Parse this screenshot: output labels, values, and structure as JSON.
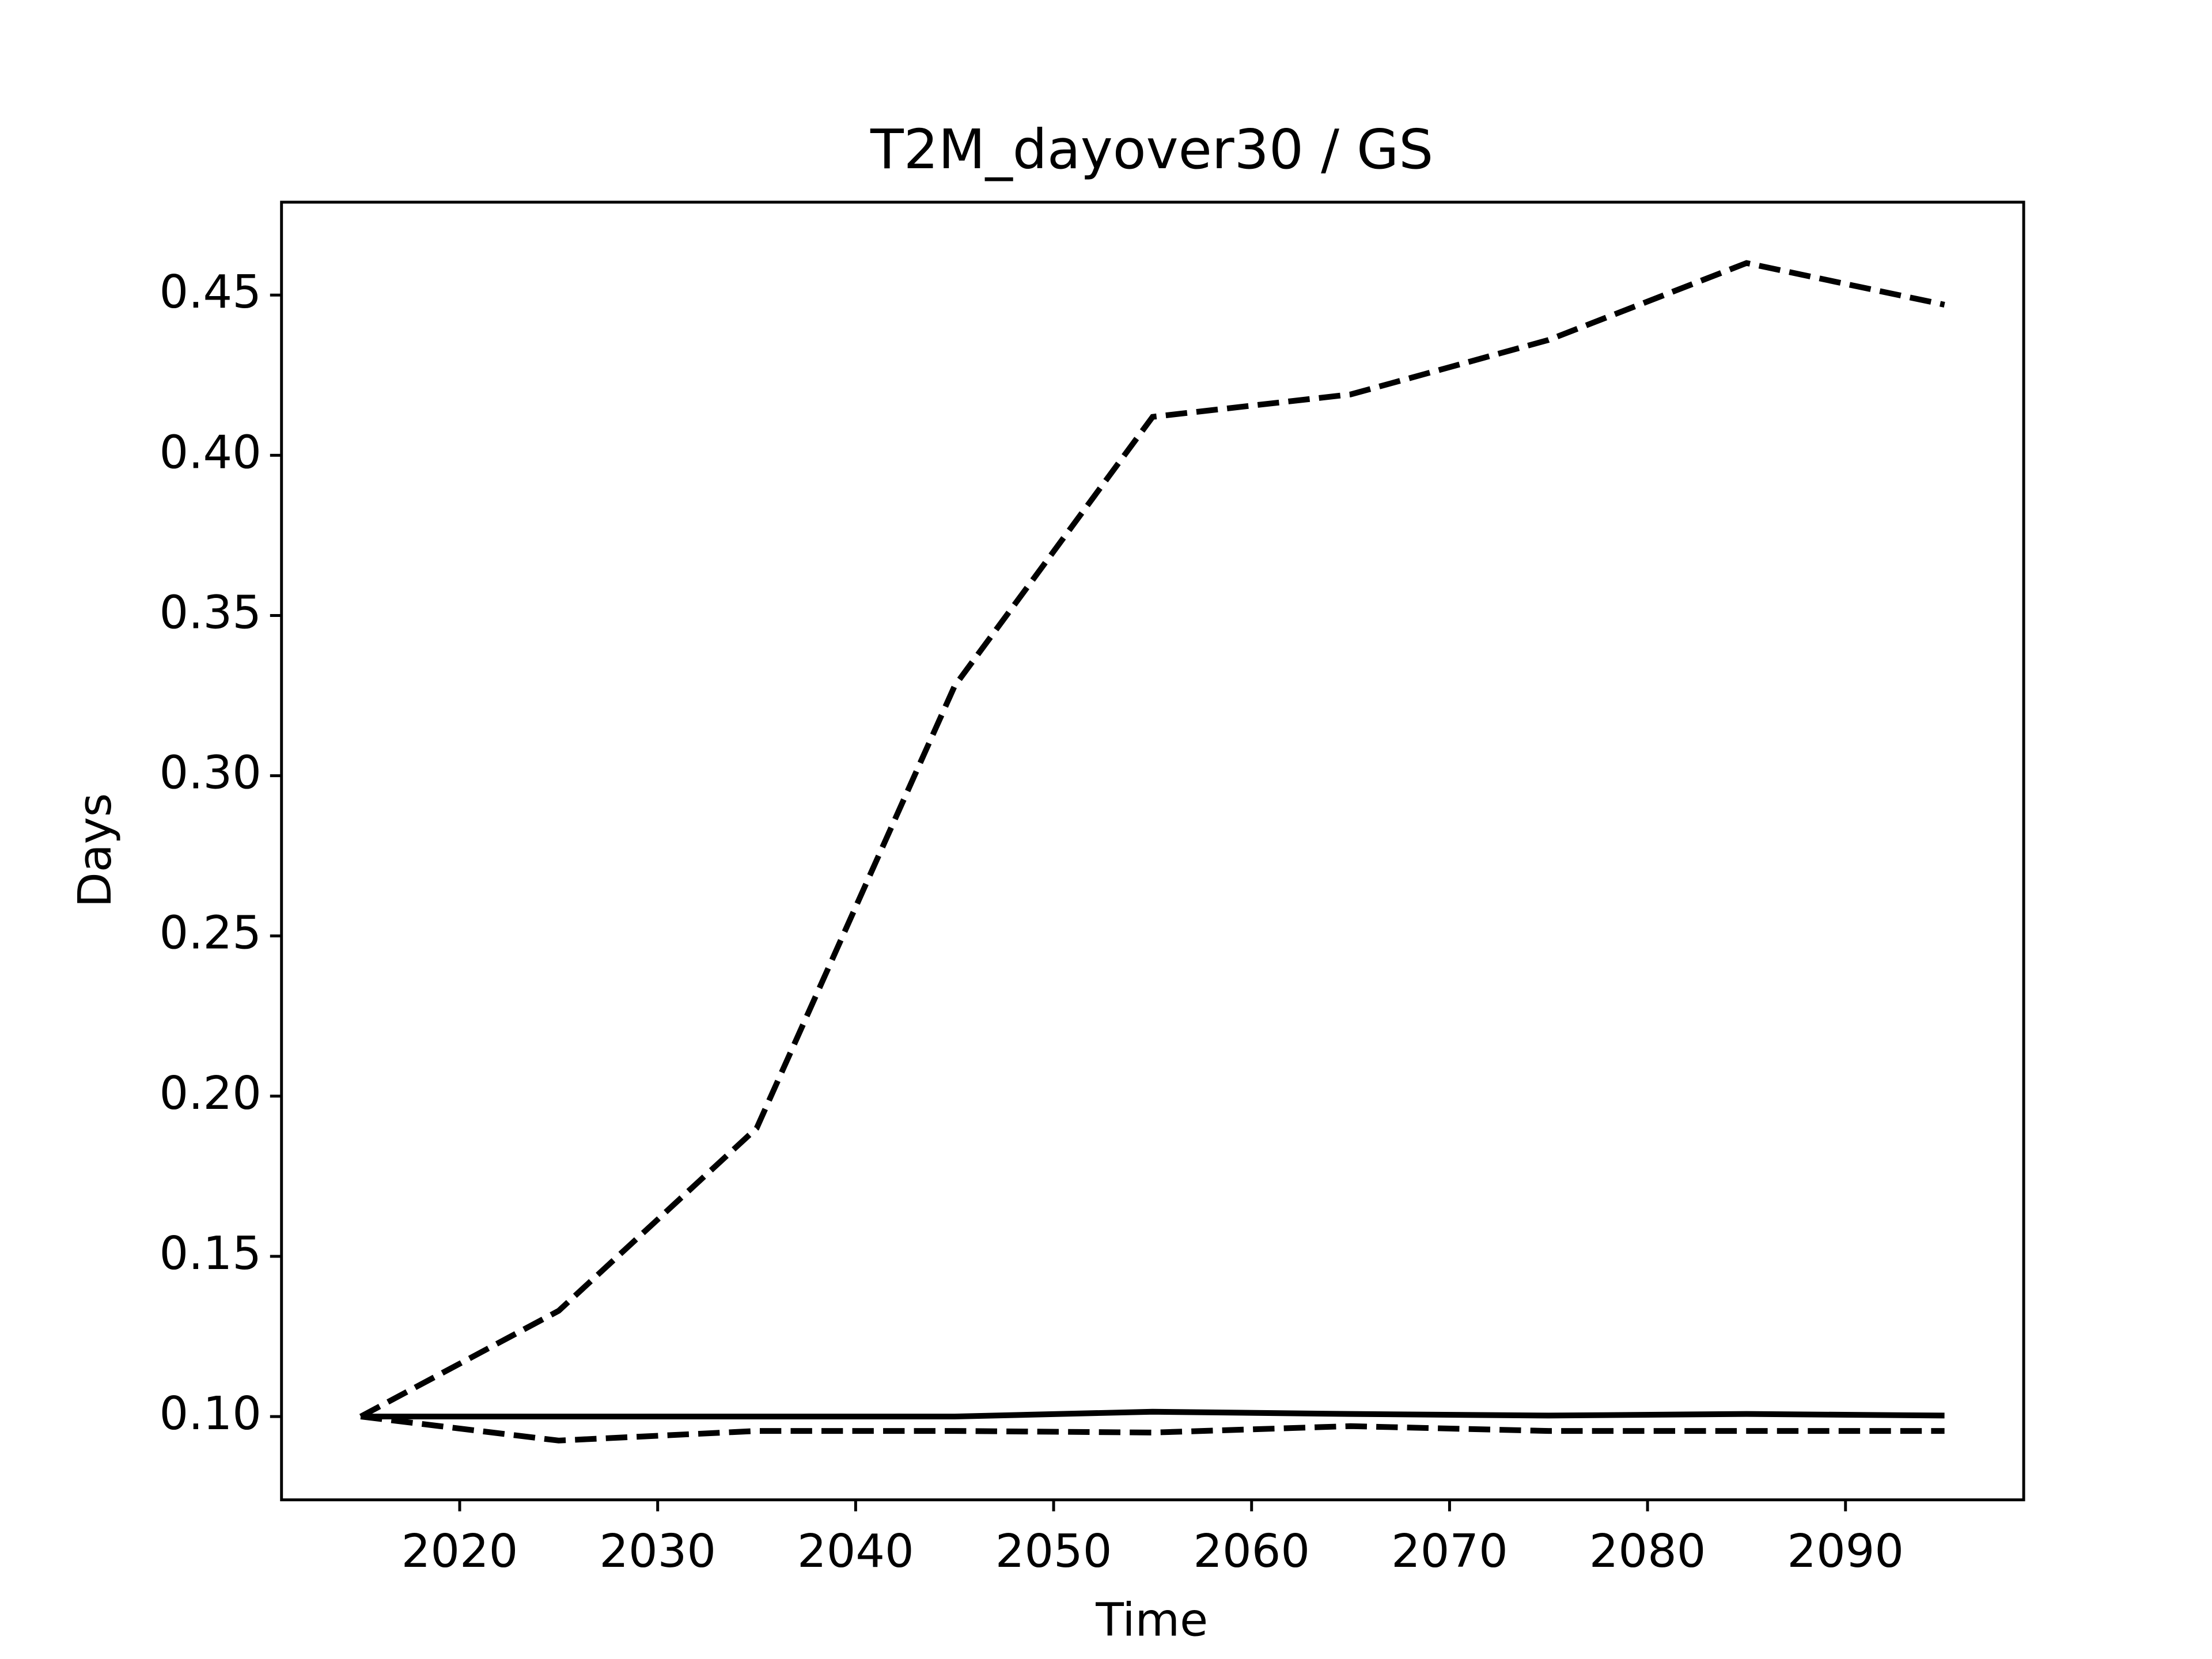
{
  "chart_data": {
    "type": "line",
    "title": "T2M_dayover30 / GS",
    "xlabel": "Time",
    "ylabel": "Days",
    "x": [
      2015,
      2025,
      2035,
      2045,
      2055,
      2065,
      2075,
      2085,
      2095
    ],
    "series": [
      {
        "color": "#000000",
        "linestyle": "dashed",
        "values": [
          0.1,
          0.133,
          0.19,
          0.328,
          0.412,
          0.419,
          0.436,
          0.46,
          0.447
        ]
      },
      {
        "color": "#000000",
        "linestyle": "solid",
        "values": [
          0.1,
          0.1,
          0.1,
          0.1,
          0.1015,
          0.1008,
          0.1003,
          0.1008,
          0.1003
        ]
      },
      {
        "color": "#000000",
        "linestyle": "dashed",
        "values": [
          0.1,
          0.0925,
          0.0955,
          0.0955,
          0.095,
          0.097,
          0.0955,
          0.0955,
          0.0955
        ]
      }
    ],
    "xlim": [
      2011,
      2099
    ],
    "xticks": [
      2020,
      2030,
      2040,
      2050,
      2060,
      2070,
      2080,
      2090
    ],
    "ylim": [
      0.074,
      0.479
    ],
    "yticks": [
      {
        "value": 0.1,
        "label": "0.10"
      },
      {
        "value": 0.15,
        "label": "0.15"
      },
      {
        "value": 0.2,
        "label": "0.20"
      },
      {
        "value": 0.25,
        "label": "0.25"
      },
      {
        "value": 0.3,
        "label": "0.30"
      },
      {
        "value": 0.35,
        "label": "0.35"
      },
      {
        "value": 0.4,
        "label": "0.40"
      },
      {
        "value": 0.45,
        "label": "0.45"
      }
    ],
    "grid": false
  }
}
